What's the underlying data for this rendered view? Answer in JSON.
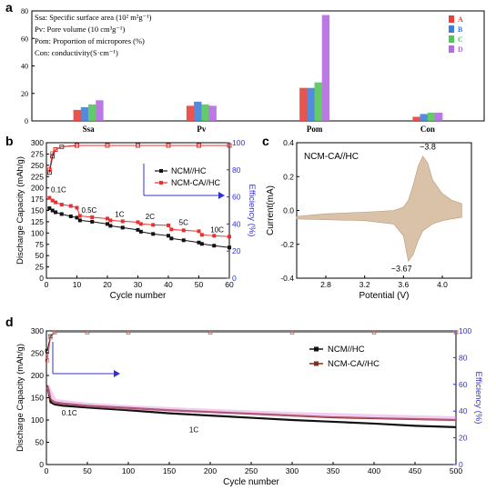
{
  "chart_data": [
    {
      "panel": "a",
      "type": "bar",
      "categories": [
        "Ssa",
        "Pv",
        "Pom",
        "Con"
      ],
      "series": [
        {
          "name": "A",
          "color": "#e8413c",
          "values": [
            8,
            11,
            24,
            3
          ]
        },
        {
          "name": "B",
          "color": "#3f7fd6",
          "values": [
            10,
            14,
            24,
            5
          ]
        },
        {
          "name": "C",
          "color": "#55c45a",
          "values": [
            12,
            12,
            28,
            6
          ]
        },
        {
          "name": "D",
          "color": "#b46ae0",
          "values": [
            15,
            11,
            77,
            6
          ]
        }
      ],
      "ylim": [
        0,
        80
      ],
      "yticks": [
        "0",
        "20",
        "40",
        "60",
        "80"
      ],
      "legend_position": "top-right",
      "notes": [
        "Ssa: Specific surface area (10² m²g⁻¹)",
        "Pv: Pore volume (10 cm³g⁻¹)",
        "Pom: Proportion of micropores (%)",
        "Con: conductivity(S·cm⁻¹)"
      ]
    },
    {
      "panel": "b",
      "type": "scatter",
      "xlabel": "Cycle number",
      "ylabel": "Discharge Capacity (mAh/g)",
      "y2label": "Efficiency (%)",
      "xlim": [
        0,
        60
      ],
      "ylim": [
        0,
        300
      ],
      "y2lim": [
        0,
        100
      ],
      "xticks": [
        "0",
        "10",
        "20",
        "30",
        "40",
        "50",
        "60"
      ],
      "yticks": [
        "0",
        "25",
        "50",
        "75",
        "100",
        "125",
        "150",
        "175",
        "200",
        "225",
        "250",
        "275",
        "300"
      ],
      "y2ticks": [
        "0",
        "20",
        "40",
        "60",
        "80",
        "100"
      ],
      "legend_position": "right",
      "series": [
        {
          "name": "NCM//HC",
          "color": "#111111",
          "axis": "left",
          "x": [
            1,
            2,
            3,
            5,
            8,
            10,
            11,
            15,
            20,
            21,
            25,
            30,
            31,
            35,
            40,
            41,
            45,
            50,
            51,
            55,
            60
          ],
          "y": [
            155,
            150,
            146,
            142,
            137,
            134,
            128,
            125,
            120,
            116,
            112,
            107,
            103,
            98,
            94,
            88,
            84,
            79,
            76,
            72,
            68
          ]
        },
        {
          "name": "NCM-CA//HC",
          "color": "#e83030",
          "axis": "left",
          "x": [
            1,
            2,
            3,
            5,
            8,
            10,
            11,
            15,
            20,
            21,
            25,
            30,
            31,
            35,
            40,
            41,
            45,
            50,
            51,
            55,
            60
          ],
          "y": [
            178,
            172,
            168,
            163,
            160,
            156,
            138,
            135,
            132,
            128,
            126,
            124,
            120,
            118,
            117,
            108,
            106,
            104,
            96,
            94,
            92
          ]
        },
        {
          "name": "NCM//HC efficiency",
          "color": "#111111",
          "axis": "right",
          "x": [
            1,
            2,
            3,
            5,
            10,
            20,
            30,
            40,
            50,
            60
          ],
          "y": [
            78,
            90,
            95,
            97,
            98,
            98,
            98,
            98,
            98,
            98
          ]
        },
        {
          "name": "NCM-CA//HC efficiency",
          "color": "#e83030",
          "axis": "right",
          "x": [
            1,
            2,
            3,
            5,
            10,
            20,
            30,
            40,
            50,
            60
          ],
          "y": [
            80,
            92,
            95,
            97,
            98,
            98,
            98,
            98,
            98,
            98
          ]
        }
      ],
      "rate_labels": [
        {
          "text": "0.1C",
          "x": 4,
          "y": 190
        },
        {
          "text": "0.5C",
          "x": 14,
          "y": 145
        },
        {
          "text": "1C",
          "x": 24,
          "y": 136
        },
        {
          "text": "2C",
          "x": 34,
          "y": 131
        },
        {
          "text": "5C",
          "x": 45,
          "y": 118
        },
        {
          "text": "10C",
          "x": 56,
          "y": 102
        }
      ]
    },
    {
      "panel": "c",
      "type": "area",
      "title": "NCM-CA//HC",
      "xlabel": "Potential (V)",
      "ylabel": "Current(mA)",
      "xlim": [
        2.5,
        4.3
      ],
      "ylim": [
        -0.4,
        0.4
      ],
      "xticks": [
        "2.8",
        "3.2",
        "3.6",
        "4.0"
      ],
      "yticks": [
        "-0.4",
        "-0.2",
        "0.0",
        "0.2",
        "0.4"
      ],
      "x": [
        2.5,
        2.8,
        3.2,
        3.5,
        3.6,
        3.65,
        3.7,
        3.75,
        3.8,
        3.85,
        3.9,
        4.0,
        4.1,
        4.2
      ],
      "y_upper": [
        -0.035,
        -0.02,
        -0.01,
        0.0,
        0.02,
        0.06,
        0.15,
        0.26,
        0.32,
        0.28,
        0.18,
        0.1,
        0.06,
        0.04
      ],
      "y_lower": [
        -0.05,
        -0.055,
        -0.06,
        -0.08,
        -0.15,
        -0.3,
        -0.26,
        -0.18,
        -0.12,
        -0.1,
        -0.08,
        -0.06,
        -0.05,
        -0.04
      ],
      "peak_labels": [
        {
          "text": "~3.8",
          "x": 3.85,
          "y": 0.36
        },
        {
          "text": "~3.67",
          "x": 3.58,
          "y": -0.36
        }
      ]
    },
    {
      "panel": "d",
      "type": "scatter",
      "xlabel": "Cycle number",
      "ylabel": "Discharge Capacity (mAh/g)",
      "y2label": "Efficiency (%)",
      "xlim": [
        0,
        500
      ],
      "ylim": [
        0,
        300
      ],
      "y2lim": [
        0,
        100
      ],
      "xticks": [
        "0",
        "50",
        "100",
        "150",
        "200",
        "250",
        "300",
        "350",
        "400",
        "450",
        "500"
      ],
      "yticks": [
        "0",
        "50",
        "100",
        "150",
        "200",
        "250",
        "300"
      ],
      "y2ticks": [
        "0",
        "20",
        "40",
        "60",
        "80",
        "100"
      ],
      "legend_position": "top-right",
      "series": [
        {
          "name": "NCM//HC",
          "color": "#111111",
          "axis": "left",
          "x": [
            1,
            3,
            5,
            10,
            20,
            50,
            100,
            150,
            200,
            250,
            300,
            350,
            400,
            450,
            500
          ],
          "y": [
            172,
            160,
            140,
            135,
            132,
            128,
            122,
            115,
            110,
            105,
            100,
            96,
            92,
            87,
            84
          ]
        },
        {
          "name": "NCM-CA//HC",
          "color": "#8b2a18",
          "axis": "left",
          "x": [
            1,
            3,
            5,
            10,
            20,
            50,
            100,
            150,
            200,
            250,
            300,
            350,
            400,
            450,
            500
          ],
          "y": [
            178,
            165,
            146,
            140,
            137,
            132,
            127,
            122,
            118,
            114,
            110,
            106,
            104,
            102,
            100
          ]
        },
        {
          "name": "NCM-CA//HC band",
          "color": "#e090e0",
          "axis": "left",
          "x": [
            1,
            10,
            50,
            100,
            200,
            300,
            400,
            500
          ],
          "y": [
            175,
            142,
            134,
            128,
            120,
            113,
            108,
            103
          ]
        },
        {
          "name": "NCM//HC efficiency",
          "color": "#111111",
          "axis": "right",
          "x": [
            1,
            5,
            10,
            50,
            100,
            200,
            300,
            400,
            500
          ],
          "y": [
            85,
            96,
            99,
            99,
            99,
            99,
            99,
            99,
            99
          ]
        },
        {
          "name": "NCM-CA//HC efficiency",
          "color": "#e06060",
          "axis": "right",
          "x": [
            1,
            5,
            10,
            50,
            100,
            200,
            300,
            400,
            500
          ],
          "y": [
            78,
            95,
            99,
            99,
            99,
            99,
            99,
            99,
            99
          ]
        }
      ],
      "rate_labels": [
        {
          "text": "0.1C",
          "x": 28,
          "y": 110
        },
        {
          "text": "1C",
          "x": 180,
          "y": 72
        }
      ]
    }
  ],
  "panel_labels": [
    "a",
    "b",
    "c",
    "d"
  ],
  "colors": {
    "axis": "#000000",
    "efficiency_axis": "#3333cc",
    "cv_fill": "#d9c2a8"
  }
}
